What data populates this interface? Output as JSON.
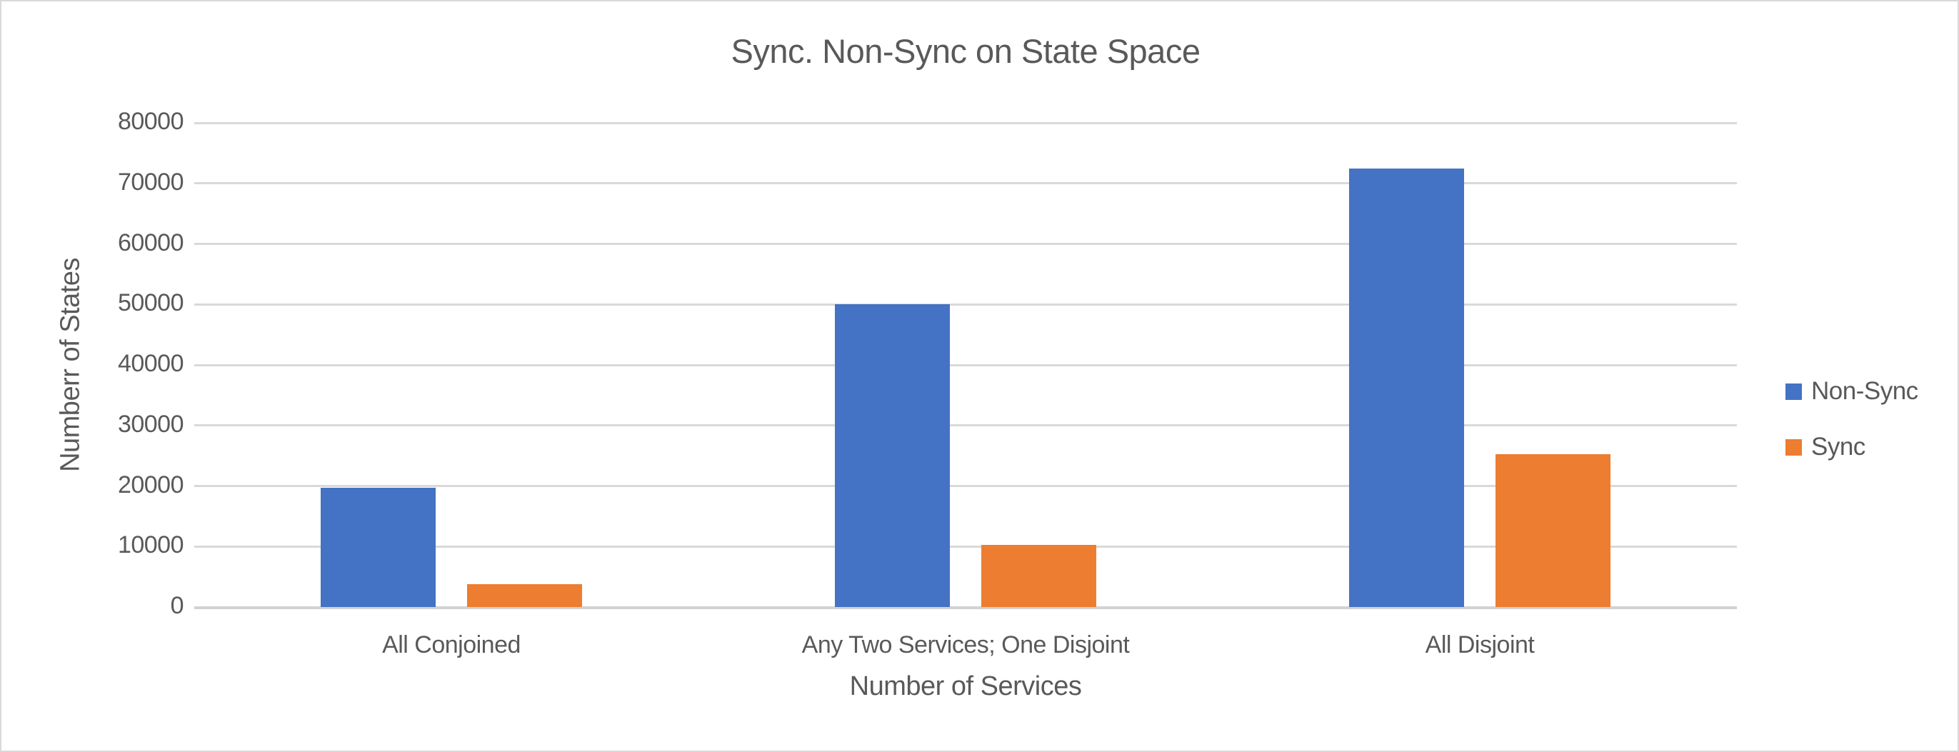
{
  "chart_data": {
    "type": "bar",
    "title": "Sync. Non-Sync on State Space",
    "xlabel": "Number of Services",
    "ylabel": "Numberr of States",
    "categories": [
      "All Conjoined",
      "Any Two Services; One Disjoint",
      "All Disjoint"
    ],
    "series": [
      {
        "name": "Non-Sync",
        "color": "#4472C4",
        "values": [
          19700,
          50000,
          72500
        ]
      },
      {
        "name": "Sync",
        "color": "#ED7D31",
        "values": [
          3800,
          10300,
          25300
        ]
      }
    ],
    "ylim": [
      0,
      80000
    ],
    "ytick_step": 10000,
    "ytick_labels": [
      "0",
      "10000",
      "20000",
      "30000",
      "40000",
      "50000",
      "60000",
      "70000",
      "80000"
    ],
    "grid": true,
    "legend_position": "right"
  },
  "colors": {
    "series_non_sync": "#4472C4",
    "series_sync": "#ED7D31",
    "text": "#595959",
    "gridline": "#D9D9D9",
    "axis_baseline": "#D2D2D2",
    "background": "#FFFFFF",
    "frame_border": "#D9D9D9"
  }
}
